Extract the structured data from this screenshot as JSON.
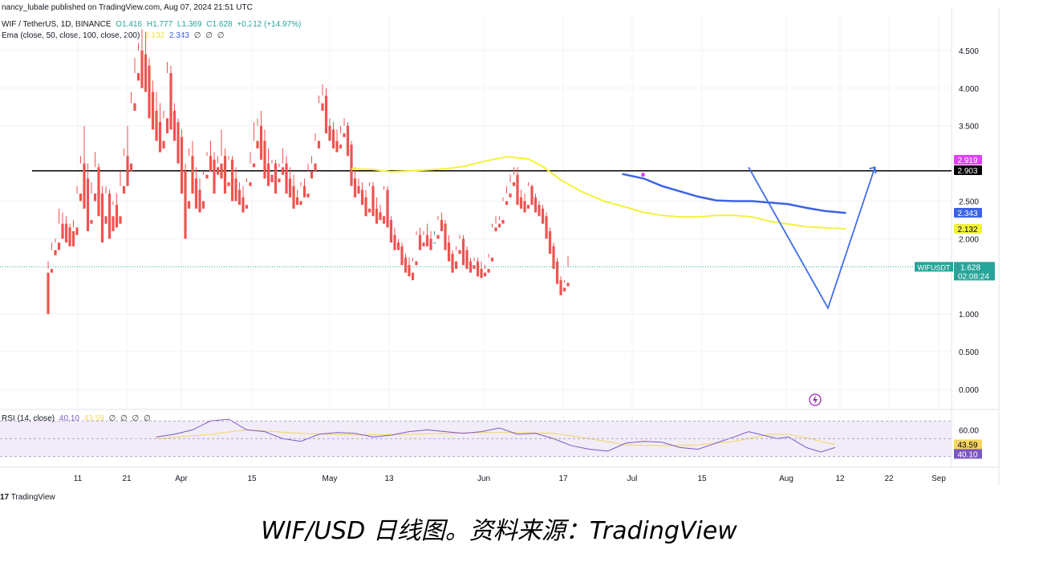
{
  "header": {
    "publisher_line": "nancy_lubale published on TradingView.com, Aug 07, 2024 21:51 UTC",
    "symbol": "WIF / TetherUS, 1D, BINANCE",
    "ohlc": {
      "open": "O1.416",
      "high": "H1.777",
      "low": "L1.369",
      "close": "C1.628",
      "change": "+0.212 (+14.97%)"
    },
    "ema_label": "Ema (close, 50, close, 100, close, 200)",
    "ema_values": [
      "2.132",
      "2.343",
      "∅",
      "∅",
      "∅"
    ],
    "rsi_label": "RSI (14, close)",
    "rsi_values": [
      "40.10",
      "43.59",
      "∅",
      "∅",
      "∅",
      "∅"
    ]
  },
  "colors": {
    "up": "#26a69a",
    "down": "#ef5350",
    "ema50": "#f2f23c",
    "ema100": "#3c63e6",
    "projection": "#3f6fe8",
    "level_line": "#000000",
    "rsi_line": "#7e57c2",
    "rsi_ma": "#f5d660",
    "rsi_band": "#ede7f6",
    "sep_icon": "#9c27b0"
  },
  "footer": {
    "logo_text": "TradingView",
    "logo_mark": "17"
  },
  "caption": "WIF/USD 日线图。资料来源：TradingView",
  "chart_data": {
    "type": "candlestick",
    "symbol": "WIFUSDT",
    "timeframe": "1D",
    "y_axis_ticks": [
      "4.500",
      "4.000",
      "3.500",
      "2.500",
      "2.000",
      "1.000",
      "0.500",
      "0.000"
    ],
    "ylim": [
      -0.1,
      4.85
    ],
    "x_axis_ticks": [
      "11",
      "21",
      "Apr",
      "15",
      "May",
      "13",
      "Jun",
      "17",
      "Jul",
      "15",
      "Aug",
      "12",
      "22",
      "Sep"
    ],
    "price_labels": [
      {
        "value": "2.919",
        "role": "ema"
      },
      {
        "value": "2.903",
        "role": "horizontal-level"
      },
      {
        "value": "2.343",
        "role": "ema100"
      },
      {
        "value": "2.132",
        "role": "ema50"
      },
      {
        "value": "1.628",
        "role": "last-price",
        "name": "WIFUSDT",
        "countdown": "02:08:24"
      }
    ],
    "horizontal_level": 2.903,
    "last_price": 1.628,
    "candles": [
      [
        1.55,
        1.7,
        1.6,
        1.0
      ],
      [
        1.6,
        1.95,
        1.85,
        1.55
      ],
      [
        1.85,
        2.0,
        1.95,
        1.78
      ],
      [
        1.95,
        2.4,
        2.2,
        1.85
      ],
      [
        2.2,
        2.35,
        2.2,
        2.0
      ],
      [
        2.2,
        2.3,
        2.15,
        1.95
      ],
      [
        2.15,
        2.2,
        2.1,
        1.9
      ],
      [
        2.1,
        2.25,
        2.15,
        1.9
      ],
      [
        2.15,
        2.7,
        2.6,
        2.05
      ],
      [
        2.6,
        3.1,
        3.0,
        2.5
      ],
      [
        3.0,
        3.5,
        2.8,
        2.4
      ],
      [
        2.8,
        3.0,
        2.25,
        2.1
      ],
      [
        2.25,
        2.75,
        2.6,
        2.2
      ],
      [
        2.6,
        3.15,
        2.95,
        2.5
      ],
      [
        2.95,
        3.0,
        2.6,
        2.3
      ],
      [
        2.6,
        2.7,
        2.3,
        1.95
      ],
      [
        2.3,
        2.7,
        2.6,
        2.2
      ],
      [
        2.6,
        2.65,
        2.3,
        2.0
      ],
      [
        2.3,
        2.5,
        2.45,
        2.1
      ],
      [
        2.45,
        2.6,
        2.3,
        2.15
      ],
      [
        2.3,
        2.9,
        2.7,
        2.2
      ],
      [
        2.7,
        3.2,
        3.1,
        2.6
      ],
      [
        3.1,
        3.5,
        3.0,
        2.7
      ],
      [
        3.0,
        3.95,
        3.8,
        2.9
      ],
      [
        3.8,
        4.4,
        4.2,
        3.7
      ],
      [
        4.2,
        4.6,
        4.5,
        4.1
      ],
      [
        4.5,
        4.78,
        4.45,
        4.0
      ],
      [
        4.45,
        4.75,
        4.3,
        3.95
      ],
      [
        4.3,
        4.4,
        3.95,
        3.6
      ],
      [
        3.95,
        4.1,
        3.7,
        3.45
      ],
      [
        3.7,
        3.95,
        3.55,
        3.3
      ],
      [
        3.55,
        3.8,
        3.3,
        3.15
      ],
      [
        3.3,
        3.7,
        3.6,
        3.2
      ],
      [
        3.6,
        4.35,
        4.2,
        3.4
      ],
      [
        4.2,
        4.3,
        3.7,
        3.45
      ],
      [
        3.7,
        3.8,
        3.55,
        3.3
      ],
      [
        3.55,
        3.6,
        3.35,
        3.0
      ],
      [
        3.35,
        3.45,
        2.9,
        2.6
      ],
      [
        2.9,
        3.0,
        2.5,
        2.0
      ],
      [
        2.5,
        3.2,
        3.1,
        2.4
      ],
      [
        3.1,
        3.3,
        2.8,
        2.6
      ],
      [
        2.8,
        2.95,
        2.65,
        2.4
      ],
      [
        2.65,
        2.8,
        2.5,
        2.35
      ],
      [
        2.5,
        2.9,
        2.85,
        2.4
      ],
      [
        2.85,
        3.15,
        3.1,
        2.8
      ],
      [
        3.1,
        3.3,
        3.05,
        2.9
      ],
      [
        3.05,
        3.15,
        2.95,
        2.6
      ],
      [
        2.95,
        3.1,
        3.0,
        2.85
      ],
      [
        3.0,
        3.45,
        3.1,
        2.8
      ],
      [
        3.1,
        3.2,
        2.75,
        2.6
      ],
      [
        2.75,
        3.1,
        3.05,
        2.7
      ],
      [
        3.05,
        3.1,
        2.8,
        2.5
      ],
      [
        2.8,
        2.95,
        2.65,
        2.5
      ],
      [
        2.65,
        2.75,
        2.55,
        2.45
      ],
      [
        2.55,
        2.7,
        2.45,
        2.35
      ],
      [
        2.45,
        2.8,
        2.75,
        2.4
      ],
      [
        2.75,
        3.15,
        3.0,
        2.7
      ],
      [
        3.0,
        3.55,
        3.3,
        2.95
      ],
      [
        3.3,
        3.6,
        3.5,
        3.2
      ],
      [
        3.5,
        3.7,
        3.3,
        3.05
      ],
      [
        3.3,
        3.45,
        3.0,
        2.8
      ],
      [
        3.0,
        3.2,
        2.85,
        2.7
      ],
      [
        2.85,
        3.05,
        3.0,
        2.75
      ],
      [
        3.0,
        3.05,
        2.8,
        2.6
      ],
      [
        2.8,
        3.0,
        2.95,
        2.75
      ],
      [
        2.95,
        3.2,
        3.0,
        2.85
      ],
      [
        3.0,
        3.1,
        2.8,
        2.6
      ],
      [
        2.8,
        2.95,
        2.7,
        2.55
      ],
      [
        2.7,
        2.85,
        2.55,
        2.4
      ],
      [
        2.55,
        2.65,
        2.5,
        2.45
      ],
      [
        2.5,
        2.75,
        2.7,
        2.45
      ],
      [
        2.7,
        2.8,
        2.6,
        2.55
      ],
      [
        2.6,
        3.0,
        2.9,
        2.55
      ],
      [
        2.9,
        3.1,
        3.0,
        2.8
      ],
      [
        3.0,
        3.4,
        3.3,
        2.9
      ],
      [
        3.3,
        3.9,
        3.8,
        3.2
      ],
      [
        3.8,
        4.05,
        3.9,
        3.7
      ],
      [
        3.9,
        4.0,
        3.5,
        3.4
      ],
      [
        3.5,
        3.6,
        3.45,
        3.3
      ],
      [
        3.45,
        3.55,
        3.3,
        3.2
      ],
      [
        3.3,
        3.45,
        3.25,
        3.15
      ],
      [
        3.25,
        3.5,
        3.4,
        3.2
      ],
      [
        3.4,
        3.6,
        3.5,
        3.35
      ],
      [
        3.5,
        3.55,
        3.25,
        3.1
      ],
      [
        3.25,
        3.3,
        2.8,
        2.7
      ],
      [
        2.8,
        2.95,
        2.7,
        2.55
      ],
      [
        2.7,
        2.8,
        2.65,
        2.6
      ],
      [
        2.65,
        2.75,
        2.55,
        2.45
      ],
      [
        2.55,
        2.65,
        2.4,
        2.3
      ],
      [
        2.4,
        2.75,
        2.7,
        2.35
      ],
      [
        2.7,
        2.75,
        2.4,
        2.3
      ],
      [
        2.4,
        2.55,
        2.35,
        2.2
      ],
      [
        2.35,
        2.45,
        2.3,
        2.25
      ],
      [
        2.3,
        2.7,
        2.65,
        2.2
      ],
      [
        2.65,
        2.7,
        2.25,
        2.15
      ],
      [
        2.25,
        2.3,
        2.05,
        1.95
      ],
      [
        2.05,
        2.15,
        1.95,
        1.85
      ],
      [
        1.95,
        2.0,
        1.9,
        1.85
      ],
      [
        1.9,
        1.95,
        1.75,
        1.65
      ],
      [
        1.75,
        1.8,
        1.65,
        1.55
      ],
      [
        1.65,
        1.75,
        1.55,
        1.5
      ],
      [
        1.55,
        1.75,
        1.7,
        1.45
      ],
      [
        1.7,
        2.1,
        2.05,
        1.65
      ],
      [
        2.05,
        2.15,
        1.95,
        1.85
      ],
      [
        1.95,
        2.1,
        2.05,
        1.9
      ],
      [
        2.05,
        2.2,
        2.0,
        1.9
      ],
      [
        2.0,
        2.1,
        1.95,
        1.85
      ],
      [
        1.95,
        2.1,
        2.05,
        1.95
      ],
      [
        2.05,
        2.3,
        2.25,
        2.0
      ],
      [
        2.25,
        2.35,
        2.2,
        2.1
      ],
      [
        2.2,
        2.25,
        1.95,
        1.85
      ],
      [
        1.95,
        2.05,
        1.8,
        1.7
      ],
      [
        1.8,
        1.85,
        1.7,
        1.55
      ],
      [
        1.7,
        1.9,
        1.85,
        1.6
      ],
      [
        1.85,
        2.05,
        2.0,
        1.8
      ],
      [
        2.0,
        2.05,
        1.85,
        1.65
      ],
      [
        1.85,
        1.9,
        1.7,
        1.6
      ],
      [
        1.7,
        1.75,
        1.65,
        1.55
      ],
      [
        1.65,
        1.75,
        1.7,
        1.6
      ],
      [
        1.7,
        1.75,
        1.6,
        1.5
      ],
      [
        1.6,
        1.7,
        1.55,
        1.48
      ],
      [
        1.55,
        1.65,
        1.6,
        1.5
      ],
      [
        1.6,
        1.8,
        1.75,
        1.55
      ],
      [
        1.75,
        2.2,
        2.15,
        1.7
      ],
      [
        2.15,
        2.3,
        2.2,
        2.1
      ],
      [
        2.2,
        2.3,
        2.25,
        2.15
      ],
      [
        2.25,
        2.55,
        2.5,
        2.2
      ],
      [
        2.5,
        2.7,
        2.6,
        2.45
      ],
      [
        2.6,
        2.85,
        2.75,
        2.55
      ],
      [
        2.75,
        2.95,
        2.85,
        2.7
      ],
      [
        2.85,
        2.95,
        2.55,
        2.45
      ],
      [
        2.55,
        2.65,
        2.5,
        2.4
      ],
      [
        2.5,
        2.6,
        2.45,
        2.35
      ],
      [
        2.45,
        2.75,
        2.7,
        2.4
      ],
      [
        2.7,
        2.72,
        2.55,
        2.45
      ],
      [
        2.55,
        2.6,
        2.45,
        2.35
      ],
      [
        2.45,
        2.5,
        2.4,
        2.3
      ],
      [
        2.4,
        2.45,
        2.3,
        2.2
      ],
      [
        2.3,
        2.35,
        2.1,
        2.0
      ],
      [
        2.1,
        2.15,
        1.9,
        1.8
      ],
      [
        1.9,
        1.95,
        1.7,
        1.6
      ],
      [
        1.7,
        1.75,
        1.45,
        1.4
      ],
      [
        1.45,
        1.5,
        1.35,
        1.25
      ],
      [
        1.35,
        1.45,
        1.416,
        1.3
      ],
      [
        1.416,
        1.777,
        1.628,
        1.369
      ]
    ],
    "ema50": [
      [
        84,
        2.93
      ],
      [
        90,
        2.92
      ],
      [
        95,
        2.89
      ],
      [
        100,
        2.9
      ],
      [
        110,
        2.93
      ],
      [
        115,
        2.96
      ],
      [
        120,
        3.02
      ],
      [
        127,
        3.09
      ],
      [
        133,
        3.06
      ],
      [
        137,
        2.96
      ],
      [
        142,
        2.78
      ],
      [
        148,
        2.62
      ],
      [
        154,
        2.5
      ],
      [
        160,
        2.42
      ],
      [
        165,
        2.35
      ],
      [
        170,
        2.31
      ],
      [
        175,
        2.29
      ],
      [
        180,
        2.29
      ],
      [
        185,
        2.31
      ],
      [
        190,
        2.31
      ],
      [
        195,
        2.29
      ],
      [
        200,
        2.23
      ],
      [
        210,
        2.16
      ],
      [
        221,
        2.132
      ]
    ],
    "ema100": [
      [
        159,
        2.86
      ],
      [
        165,
        2.8
      ],
      [
        170,
        2.7
      ],
      [
        175,
        2.63
      ],
      [
        180,
        2.56
      ],
      [
        185,
        2.51
      ],
      [
        190,
        2.5
      ],
      [
        195,
        2.5
      ],
      [
        200,
        2.48
      ],
      [
        205,
        2.46
      ],
      [
        210,
        2.41
      ],
      [
        215,
        2.37
      ],
      [
        221,
        2.343
      ]
    ],
    "projection": [
      [
        194,
        2.95
      ],
      [
        216,
        1.08
      ],
      [
        229,
        2.95
      ]
    ],
    "rsi": [
      [
        30,
        52
      ],
      [
        35,
        55
      ],
      [
        40,
        60
      ],
      [
        45,
        70
      ],
      [
        50,
        72
      ],
      [
        55,
        60
      ],
      [
        60,
        58
      ],
      [
        65,
        50
      ],
      [
        70,
        47
      ],
      [
        75,
        55
      ],
      [
        80,
        57
      ],
      [
        85,
        56
      ],
      [
        90,
        52
      ],
      [
        95,
        54
      ],
      [
        100,
        58
      ],
      [
        105,
        60
      ],
      [
        110,
        58
      ],
      [
        115,
        56
      ],
      [
        120,
        58
      ],
      [
        125,
        62
      ],
      [
        130,
        55
      ],
      [
        135,
        56
      ],
      [
        140,
        50
      ],
      [
        145,
        42
      ],
      [
        150,
        38
      ],
      [
        155,
        36
      ],
      [
        160,
        45
      ],
      [
        165,
        47
      ],
      [
        170,
        46
      ],
      [
        175,
        40
      ],
      [
        180,
        38
      ],
      [
        185,
        45
      ],
      [
        190,
        52
      ],
      [
        194,
        58
      ],
      [
        198,
        54
      ],
      [
        202,
        50
      ],
      [
        205,
        52
      ],
      [
        210,
        40
      ],
      [
        214,
        35
      ],
      [
        218,
        40
      ]
    ],
    "rsi_ma": [
      [
        30,
        50
      ],
      [
        45,
        55
      ],
      [
        55,
        60
      ],
      [
        70,
        56
      ],
      [
        85,
        54
      ],
      [
        100,
        55
      ],
      [
        110,
        56
      ],
      [
        120,
        57
      ],
      [
        130,
        57
      ],
      [
        140,
        56
      ],
      [
        150,
        50
      ],
      [
        160,
        43
      ],
      [
        170,
        42
      ],
      [
        180,
        43
      ],
      [
        190,
        47
      ],
      [
        200,
        55
      ],
      [
        205,
        55
      ],
      [
        210,
        51
      ],
      [
        215,
        46
      ],
      [
        218,
        43.59
      ]
    ],
    "rsi_levels": [
      "60.00",
      "43.59",
      "40.10"
    ],
    "rsi_current": 40.1,
    "rsi_ma_current": 43.59
  }
}
